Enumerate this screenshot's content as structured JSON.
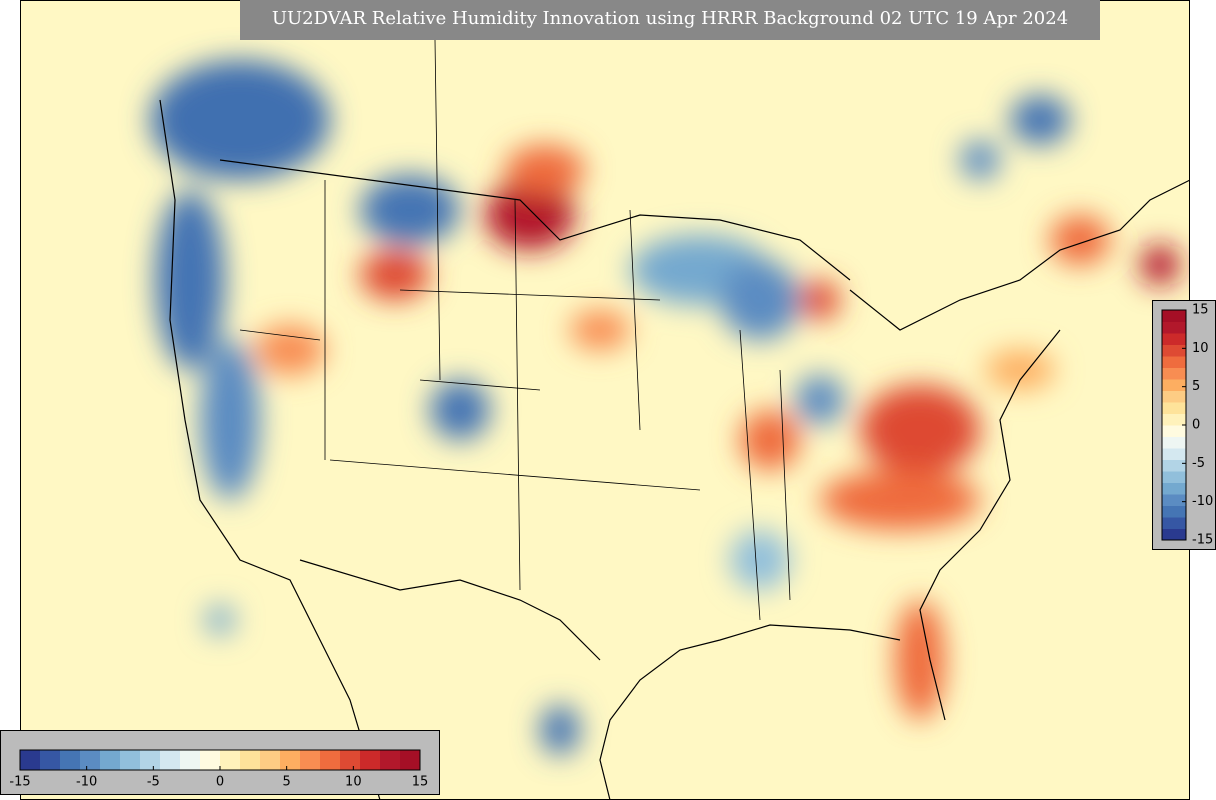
{
  "title": "UU2DVAR Relative Humidity Innovation using HRRR Background 02 UTC 19 Apr 2024",
  "colorbar": {
    "lim": [
      -15,
      15
    ],
    "ticks": [
      -15,
      -10,
      -5,
      0,
      5,
      10,
      15
    ],
    "colors": [
      "#2a3a8f",
      "#3657a4",
      "#4575b4",
      "#5b8cc2",
      "#74a9cf",
      "#91bfdb",
      "#b2d4e6",
      "#d4e8f0",
      "#eef6f3",
      "#fffbe0",
      "#fff2bb",
      "#fee39a",
      "#fdcc84",
      "#fdae61",
      "#f88d52",
      "#ef6c3e",
      "#de4a33",
      "#cc2a2a",
      "#b2182b",
      "#a50f26"
    ]
  }
}
